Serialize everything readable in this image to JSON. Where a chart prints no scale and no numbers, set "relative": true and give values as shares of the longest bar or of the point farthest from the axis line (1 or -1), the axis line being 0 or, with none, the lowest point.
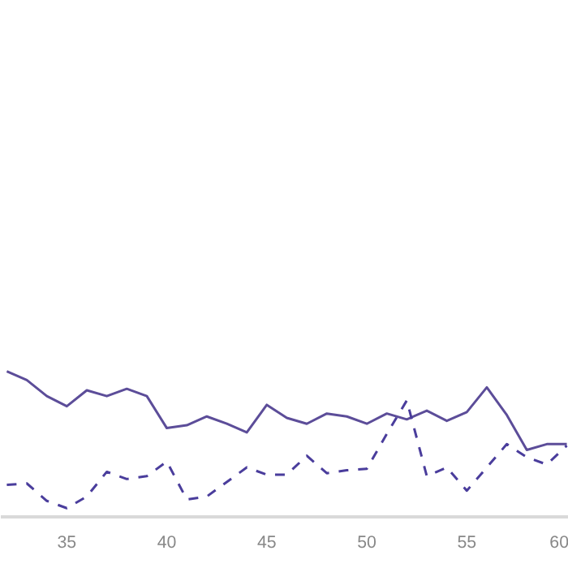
{
  "chart_data": {
    "type": "line",
    "relative": true,
    "marker": "none",
    "x": [
      32,
      33,
      34,
      35,
      36,
      37,
      38,
      39,
      40,
      41,
      42,
      43,
      44,
      45,
      46,
      47,
      48,
      49,
      50,
      51,
      52,
      53,
      54,
      55,
      56,
      57,
      58,
      59,
      60
    ],
    "xlim": [
      31.7,
      60.1
    ],
    "xticks": [
      35,
      40,
      45,
      50,
      55,
      60
    ],
    "series": [
      {
        "color": "#5c4d99",
        "line_style": "solid",
        "values": [
          1.0,
          0.94,
          0.83,
          0.76,
          0.87,
          0.83,
          0.88,
          0.83,
          0.61,
          0.63,
          0.69,
          0.64,
          0.58,
          0.77,
          0.68,
          0.64,
          0.71,
          0.69,
          0.64,
          0.71,
          0.67,
          0.73,
          0.66,
          0.72,
          0.89,
          0.7,
          0.46,
          0.5,
          0.5
        ]
      },
      {
        "color": "#4a3d9c",
        "line_style": "dashed",
        "values": [
          0.22,
          0.23,
          0.11,
          0.06,
          0.14,
          0.31,
          0.26,
          0.28,
          0.38,
          0.12,
          0.14,
          0.24,
          0.34,
          0.29,
          0.29,
          0.42,
          0.3,
          0.32,
          0.33,
          0.57,
          0.8,
          0.28,
          0.34,
          0.18,
          0.34,
          0.5,
          0.41,
          0.36,
          0.49
        ]
      }
    ]
  }
}
